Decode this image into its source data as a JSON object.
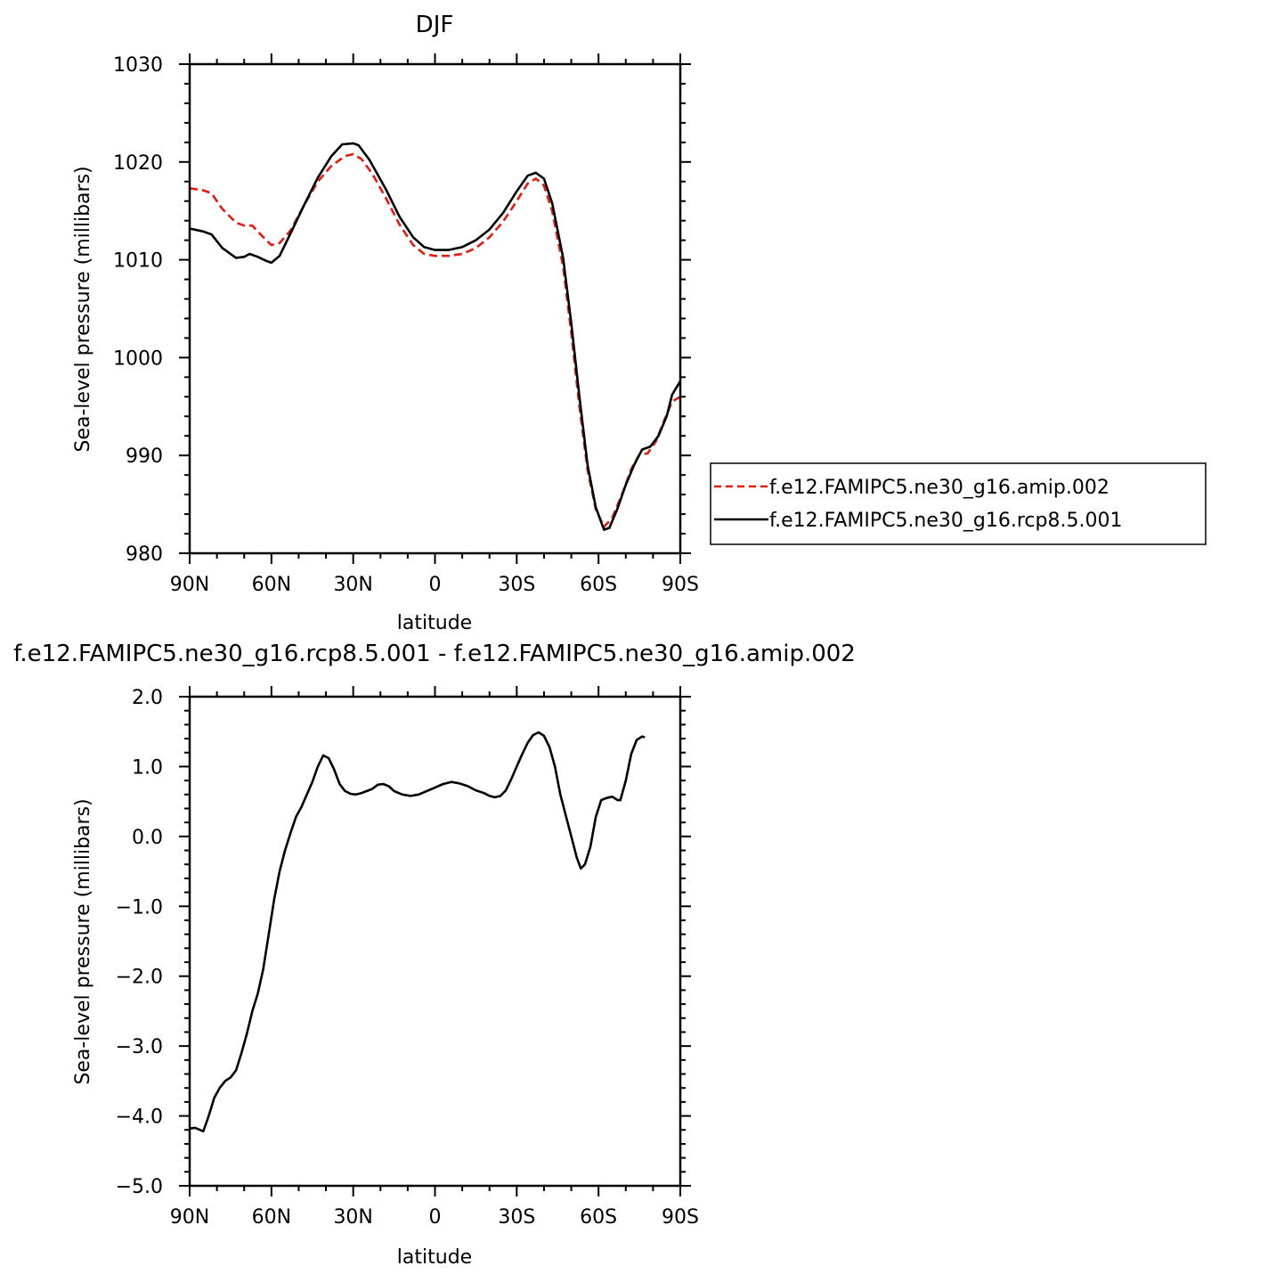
{
  "chart_data": [
    {
      "type": "line",
      "title": "DJF",
      "xlabel": "latitude",
      "ylabel": "Sea-level pressure (millibars)",
      "xlim": [
        90,
        -90
      ],
      "ylim": [
        980,
        1030
      ],
      "xticks": [
        90,
        60,
        30,
        0,
        -30,
        -60,
        -90
      ],
      "xtick_labels": [
        "90N",
        "60N",
        "30N",
        "0",
        "30S",
        "60S",
        "90S"
      ],
      "yticks": [
        980,
        990,
        1000,
        1010,
        1020,
        1030
      ],
      "ytick_labels": [
        "980",
        "990",
        "1000",
        "1010",
        "1020",
        "1030"
      ],
      "grid": false,
      "legend_position": "right",
      "series": [
        {
          "name": "f.e12.FAMIPC5.ne30_g16.amip.002",
          "color": "#e8190f",
          "dash": "dashed",
          "points": [
            [
              90,
              1017.3
            ],
            [
              85,
              1017.1
            ],
            [
              82,
              1016.8
            ],
            [
              78,
              1015.2
            ],
            [
              73,
              1013.8
            ],
            [
              70,
              1013.5
            ],
            [
              67,
              1013.5
            ],
            [
              64,
              1012.6
            ],
            [
              60,
              1011.5
            ],
            [
              57,
              1011.7
            ],
            [
              53,
              1013.0
            ],
            [
              48,
              1015.6
            ],
            [
              43,
              1018.0
            ],
            [
              38,
              1019.6
            ],
            [
              33,
              1020.6
            ],
            [
              30,
              1020.8
            ],
            [
              27,
              1020.3
            ],
            [
              23,
              1018.8
            ],
            [
              18,
              1016.3
            ],
            [
              13,
              1013.6
            ],
            [
              8,
              1011.5
            ],
            [
              4,
              1010.6
            ],
            [
              0,
              1010.4
            ],
            [
              -5,
              1010.4
            ],
            [
              -10,
              1010.6
            ],
            [
              -15,
              1011.2
            ],
            [
              -20,
              1012.3
            ],
            [
              -25,
              1013.9
            ],
            [
              -30,
              1016.0
            ],
            [
              -34,
              1017.8
            ],
            [
              -37,
              1018.3
            ],
            [
              -40,
              1017.6
            ],
            [
              -43,
              1015.0
            ],
            [
              -47,
              1009.3
            ],
            [
              -50,
              1002.5
            ],
            [
              -53,
              995.0
            ],
            [
              -56,
              988.5
            ],
            [
              -59,
              984.5
            ],
            [
              -62,
              982.7
            ],
            [
              -65,
              983.6
            ],
            [
              -69,
              986.3
            ],
            [
              -72,
              988.6
            ],
            [
              -75,
              990.1
            ],
            [
              -78,
              990.2
            ],
            [
              -81,
              991.4
            ],
            [
              -84,
              993.5
            ],
            [
              -87,
              995.5
            ],
            [
              -90,
              996.0
            ]
          ]
        },
        {
          "name": "f.e12.FAMIPC5.ne30_g16.rcp8.5.001",
          "color": "#000000",
          "dash": "solid",
          "points": [
            [
              90,
              1013.2
            ],
            [
              85,
              1012.9
            ],
            [
              82,
              1012.6
            ],
            [
              78,
              1011.2
            ],
            [
              73,
              1010.2
            ],
            [
              70,
              1010.3
            ],
            [
              68,
              1010.6
            ],
            [
              65,
              1010.3
            ],
            [
              62,
              1009.9
            ],
            [
              60,
              1009.7
            ],
            [
              57,
              1010.4
            ],
            [
              53,
              1012.7
            ],
            [
              48,
              1015.6
            ],
            [
              43,
              1018.4
            ],
            [
              38,
              1020.6
            ],
            [
              34,
              1021.8
            ],
            [
              30,
              1021.9
            ],
            [
              28,
              1021.7
            ],
            [
              24,
              1020.2
            ],
            [
              18,
              1017.2
            ],
            [
              13,
              1014.4
            ],
            [
              8,
              1012.3
            ],
            [
              4,
              1011.3
            ],
            [
              0,
              1011.0
            ],
            [
              -5,
              1011.0
            ],
            [
              -10,
              1011.3
            ],
            [
              -15,
              1012.0
            ],
            [
              -20,
              1013.1
            ],
            [
              -25,
              1014.8
            ],
            [
              -30,
              1017.0
            ],
            [
              -34,
              1018.6
            ],
            [
              -37,
              1018.9
            ],
            [
              -40,
              1018.3
            ],
            [
              -43,
              1015.8
            ],
            [
              -47,
              1010.2
            ],
            [
              -50,
              1003.5
            ],
            [
              -53,
              996.0
            ],
            [
              -56,
              989.0
            ],
            [
              -59,
              984.7
            ],
            [
              -62,
              982.4
            ],
            [
              -64,
              982.6
            ],
            [
              -67,
              984.6
            ],
            [
              -70,
              987.0
            ],
            [
              -73,
              989.0
            ],
            [
              -76,
              990.6
            ],
            [
              -79,
              990.9
            ],
            [
              -82,
              992.0
            ],
            [
              -85,
              994.0
            ],
            [
              -87,
              996.2
            ],
            [
              -90,
              997.6
            ]
          ]
        }
      ]
    },
    {
      "type": "line",
      "title": "f.e12.FAMIPC5.ne30_g16.rcp8.5.001 - f.e12.FAMIPC5.ne30_g16.amip.002",
      "xlabel": "latitude",
      "ylabel": "Sea-level pressure (millibars)",
      "xlim": [
        90,
        -90
      ],
      "ylim": [
        -5.0,
        2.0
      ],
      "xticks": [
        90,
        60,
        30,
        0,
        -30,
        -60,
        -90
      ],
      "xtick_labels": [
        "90N",
        "60N",
        "30N",
        "0",
        "30S",
        "60S",
        "90S"
      ],
      "yticks": [
        -5,
        -4,
        -3,
        -2,
        -1,
        0,
        1,
        2
      ],
      "ytick_labels": [
        "−5.0",
        "−4.0",
        "−3.0",
        "−2.0",
        "−1.0",
        "0.0",
        "1.0",
        "2.0"
      ],
      "grid": false,
      "series": [
        {
          "color": "#000000",
          "dash": "solid",
          "points": [
            [
              90,
              -4.18
            ],
            [
              88,
              -4.17
            ],
            [
              85,
              -4.22
            ],
            [
              83,
              -4.0
            ],
            [
              81,
              -3.74
            ],
            [
              79,
              -3.6
            ],
            [
              77,
              -3.5
            ],
            [
              75,
              -3.45
            ],
            [
              73,
              -3.35
            ],
            [
              71,
              -3.1
            ],
            [
              69,
              -2.82
            ],
            [
              67,
              -2.5
            ],
            [
              65,
              -2.25
            ],
            [
              63,
              -1.9
            ],
            [
              61,
              -1.4
            ],
            [
              59,
              -0.9
            ],
            [
              57,
              -0.5
            ],
            [
              55,
              -0.2
            ],
            [
              53,
              0.05
            ],
            [
              51,
              0.28
            ],
            [
              49,
              0.42
            ],
            [
              47,
              0.6
            ],
            [
              45,
              0.78
            ],
            [
              43,
              1.0
            ],
            [
              41,
              1.16
            ],
            [
              39,
              1.12
            ],
            [
              37,
              0.96
            ],
            [
              35,
              0.75
            ],
            [
              33,
              0.65
            ],
            [
              31,
              0.61
            ],
            [
              29,
              0.6
            ],
            [
              27,
              0.62
            ],
            [
              25,
              0.65
            ],
            [
              23,
              0.68
            ],
            [
              21,
              0.74
            ],
            [
              19,
              0.75
            ],
            [
              17,
              0.72
            ],
            [
              15,
              0.65
            ],
            [
              12,
              0.6
            ],
            [
              9,
              0.58
            ],
            [
              6,
              0.6
            ],
            [
              3,
              0.65
            ],
            [
              0,
              0.7
            ],
            [
              -3,
              0.75
            ],
            [
              -6,
              0.78
            ],
            [
              -9,
              0.76
            ],
            [
              -12,
              0.72
            ],
            [
              -15,
              0.66
            ],
            [
              -18,
              0.62
            ],
            [
              -20,
              0.58
            ],
            [
              -22,
              0.56
            ],
            [
              -24,
              0.58
            ],
            [
              -26,
              0.66
            ],
            [
              -28,
              0.82
            ],
            [
              -30,
              1.0
            ],
            [
              -32,
              1.18
            ],
            [
              -34,
              1.34
            ],
            [
              -36,
              1.45
            ],
            [
              -38,
              1.49
            ],
            [
              -40,
              1.44
            ],
            [
              -42,
              1.28
            ],
            [
              -44,
              1.0
            ],
            [
              -46,
              0.6
            ],
            [
              -48,
              0.3
            ],
            [
              -50,
              0.0
            ],
            [
              -52,
              -0.3
            ],
            [
              -53.5,
              -0.46
            ],
            [
              -55,
              -0.4
            ],
            [
              -57,
              -0.15
            ],
            [
              -59,
              0.28
            ],
            [
              -61,
              0.52
            ],
            [
              -63,
              0.55
            ],
            [
              -65,
              0.57
            ],
            [
              -67,
              0.52
            ],
            [
              -68,
              0.52
            ],
            [
              -70,
              0.8
            ],
            [
              -72,
              1.18
            ],
            [
              -74,
              1.38
            ],
            [
              -76,
              1.43
            ],
            [
              -77,
              1.42
            ]
          ]
        }
      ]
    }
  ]
}
